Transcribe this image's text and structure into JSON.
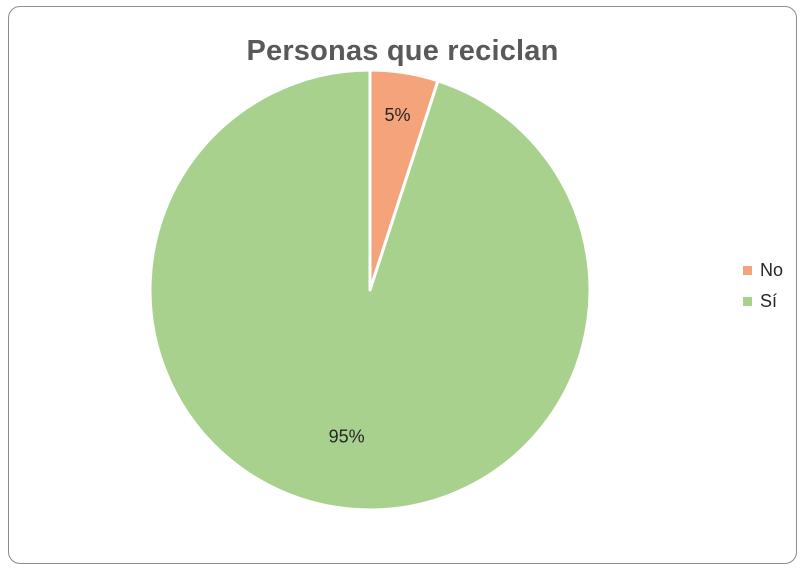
{
  "chart_data": {
    "type": "pie",
    "title": "Personas que reciclan",
    "categories": [
      "No",
      "Sí"
    ],
    "values": [
      5,
      95
    ],
    "data_labels": [
      "5%",
      "95%"
    ],
    "colors": [
      "#f4a37a",
      "#a9d18e"
    ],
    "start_angle": "top, clockwise",
    "legend_position": "right"
  }
}
